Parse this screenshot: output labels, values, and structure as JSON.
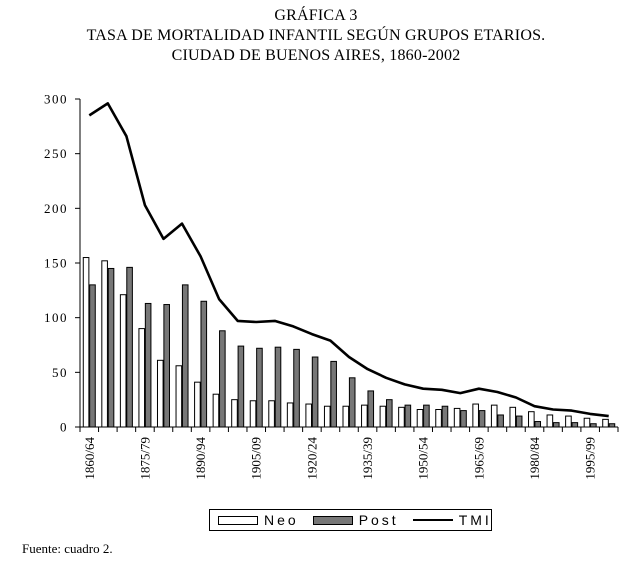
{
  "titles": {
    "line1": "GRÁFICA 3",
    "line2": "TASA DE MORTALIDAD INFANTIL SEGÚN GRUPOS ETARIOS.",
    "line3": "CIUDAD DE BUENOS AIRES, 1860-2002"
  },
  "source": "Fuente: cuadro 2.",
  "chart_data": {
    "type": "bar",
    "ylim": [
      0,
      300
    ],
    "yticks": [
      "0",
      "50",
      "100",
      "150",
      "200",
      "250",
      "300"
    ],
    "categories": [
      "1860/64",
      "1865/69",
      "1870/74",
      "1875/79",
      "1880/84",
      "1885/89",
      "1890/94",
      "1895/99",
      "1900/04",
      "1905/09",
      "1910/14",
      "1915/19",
      "1920/24",
      "1925/29",
      "1930/34",
      "1935/39",
      "1940/44",
      "1945/49",
      "1950/54",
      "1955/59",
      "1960/64",
      "1965/69",
      "1970/74",
      "1975/79",
      "1980/84",
      "1985/89",
      "1990/94",
      "1995/99",
      "2000/02"
    ],
    "xtick_labels": [
      "1860/64",
      "1875/79",
      "1890/94",
      "1905/09",
      "1920/24",
      "1935/39",
      "1950/54",
      "1965/69",
      "1980/84",
      "1995/99"
    ],
    "series": [
      {
        "name": "Neo",
        "type": "bar",
        "values": [
          155,
          152,
          121,
          90,
          61,
          56,
          41,
          30,
          25,
          24,
          24,
          22,
          21,
          19,
          19,
          20,
          19,
          18,
          16,
          16,
          17,
          21,
          20,
          18,
          14,
          11,
          10,
          8,
          7
        ]
      },
      {
        "name": "Post",
        "type": "bar",
        "values": [
          130,
          145,
          146,
          113,
          112,
          130,
          115,
          88,
          74,
          72,
          73,
          71,
          64,
          60,
          45,
          33,
          25,
          20,
          20,
          19,
          15,
          15,
          11,
          10,
          5,
          4,
          4,
          3,
          3
        ]
      },
      {
        "name": "TMI",
        "type": "line",
        "values": [
          285,
          296,
          266,
          203,
          172,
          186,
          156,
          117,
          97,
          96,
          97,
          92,
          85,
          79,
          64,
          53,
          45,
          39,
          35,
          34,
          31,
          35,
          32,
          27,
          19,
          16,
          15,
          12,
          10
        ]
      }
    ],
    "legend": "bottom-center",
    "grid": false
  },
  "colors": {
    "neo": "#ffffff",
    "post": "#777777",
    "tmi": "#000000",
    "axis": "#000000"
  }
}
